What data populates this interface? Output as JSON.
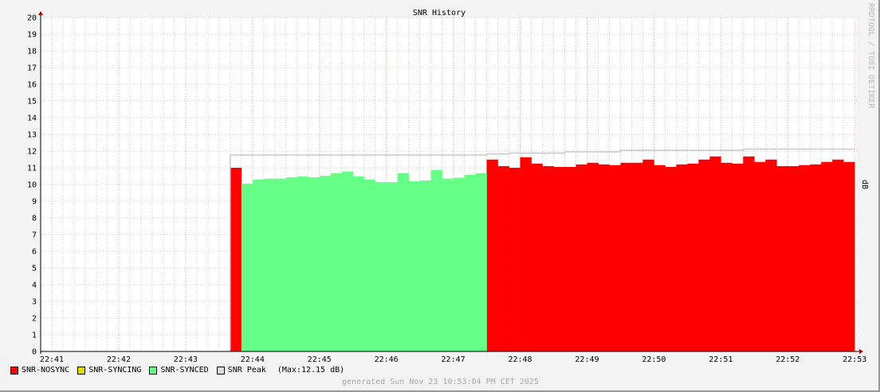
{
  "chart_data": {
    "type": "area",
    "title": "SNR History",
    "ylabel": "dB",
    "watermark": "RRDTOOL / TOBI OETIKER",
    "ylim": [
      0,
      20
    ],
    "yticks": [
      "0",
      "1",
      "2",
      "3",
      "4",
      "5",
      "6",
      "7",
      "8",
      "9",
      "10",
      "11",
      "12",
      "13",
      "14",
      "15",
      "16",
      "17",
      "18",
      "19",
      "20"
    ],
    "xticks": [
      "22:41",
      "22:42",
      "22:43",
      "22:44",
      "22:45",
      "22:46",
      "22:47",
      "22:48",
      "22:49",
      "22:50",
      "22:51",
      "22:52",
      "22:53"
    ],
    "xlim": [
      "22:40:50",
      "22:53:02"
    ],
    "x_start": "22:43:40",
    "step_seconds": 10,
    "grid": true,
    "colors": {
      "nosync": "#ff0000",
      "syncing": "#dddd00",
      "synced": "#66ff88",
      "peak": "#c8c8c8",
      "major_grid": "#f0a0a0",
      "minor_grid": "#cccccc"
    },
    "series": [
      {
        "name": "SNR-NOSYNC",
        "values": [
          11.0,
          null,
          null,
          null,
          null,
          null,
          null,
          null,
          null,
          null,
          null,
          null,
          null,
          null,
          null,
          null,
          null,
          null,
          null,
          null,
          null,
          null,
          null,
          11.49,
          11.1,
          11.0,
          11.63,
          11.25,
          11.1,
          11.05,
          11.05,
          11.2,
          11.3,
          11.2,
          11.16,
          11.3,
          11.3,
          11.49,
          11.16,
          11.05,
          11.2,
          11.25,
          11.49,
          11.68,
          11.3,
          11.25,
          11.68,
          11.35,
          11.49,
          11.1,
          11.1,
          11.16,
          11.2,
          11.35,
          11.49,
          11.35
        ]
      },
      {
        "name": "SNR-SYNCING",
        "values": []
      },
      {
        "name": "SNR-SYNCED",
        "values": [
          null,
          10.05,
          10.3,
          10.35,
          10.35,
          10.43,
          10.48,
          10.43,
          10.52,
          10.67,
          10.78,
          10.48,
          10.3,
          10.14,
          10.14,
          10.67,
          10.19,
          10.24,
          10.87,
          10.35,
          10.4,
          10.57,
          10.67,
          null,
          null,
          null,
          null,
          null,
          null,
          null,
          null,
          null,
          null,
          null,
          null,
          null,
          null,
          null,
          null,
          null,
          null,
          null,
          null,
          null,
          null,
          null,
          null,
          null,
          null,
          null,
          null,
          null,
          null,
          null,
          null,
          null
        ]
      },
      {
        "name": "SNR Peak",
        "values": [
          11.76,
          11.76,
          11.76,
          11.76,
          11.76,
          11.76,
          11.76,
          11.76,
          11.76,
          11.76,
          11.76,
          11.76,
          11.76,
          11.76,
          11.76,
          11.76,
          11.76,
          11.76,
          11.76,
          11.76,
          11.76,
          11.76,
          11.76,
          11.83,
          11.83,
          11.88,
          11.88,
          11.88,
          11.88,
          11.88,
          11.95,
          11.95,
          11.95,
          11.95,
          11.95,
          12.05,
          12.05,
          12.05,
          12.05,
          12.05,
          12.05,
          12.05,
          12.05,
          12.05,
          12.05,
          12.05,
          12.12,
          12.12,
          12.12,
          12.12,
          12.12,
          12.12,
          12.12,
          12.12,
          12.12,
          12.12
        ]
      }
    ],
    "legend": {
      "placement": "bottom-left",
      "items": [
        "SNR-NOSYNC",
        "SNR-SYNCING",
        "SNR-SYNCED",
        "SNR Peak"
      ],
      "peak_note": "(Max:12.15 dB)"
    },
    "footer": "generated Sun Nov 23 10:53:04 PM CET 2025"
  }
}
